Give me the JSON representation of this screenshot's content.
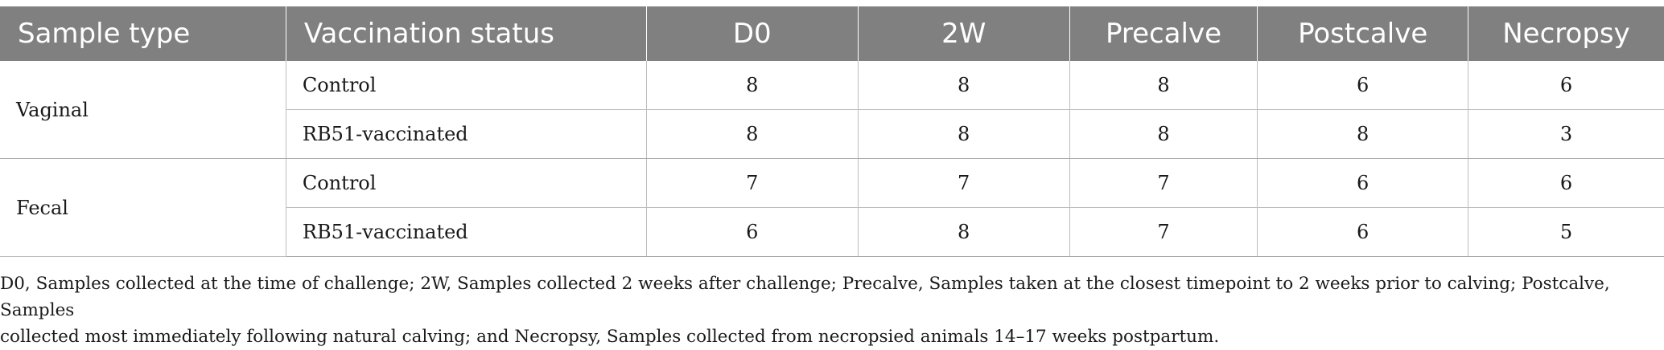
{
  "table": {
    "headers": [
      "Sample type",
      "Vaccination status",
      "D0",
      "2W",
      "Precalve",
      "Postcalve",
      "Necropsy"
    ],
    "groups": [
      {
        "sample_type": "Vaginal",
        "rows": [
          {
            "status": "Control",
            "values": [
              "8",
              "8",
              "8",
              "6",
              "6"
            ]
          },
          {
            "status": "RB51-vaccinated",
            "values": [
              "8",
              "8",
              "8",
              "8",
              "3"
            ]
          }
        ]
      },
      {
        "sample_type": "Fecal",
        "rows": [
          {
            "status": "Control",
            "values": [
              "7",
              "7",
              "7",
              "6",
              "6"
            ]
          },
          {
            "status": "RB51-vaccinated",
            "values": [
              "6",
              "8",
              "7",
              "6",
              "5"
            ]
          }
        ]
      }
    ]
  },
  "footnote": {
    "line1": "D0, Samples collected at the time of challenge; 2W, Samples collected 2 weeks after challenge; Precalve, Samples taken at the closest timepoint to 2 weeks prior to calving; Postcalve, Samples",
    "line2": "collected most immediately following natural calving; and Necropsy, Samples collected from necropsied animals 14–17 weeks postpartum."
  }
}
